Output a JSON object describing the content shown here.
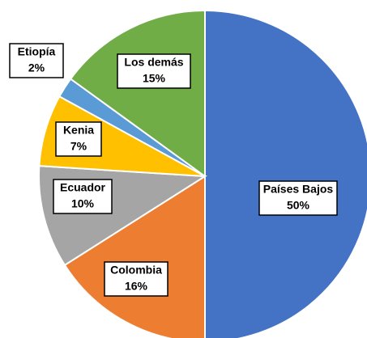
{
  "chart_data": {
    "type": "pie",
    "categories": [
      "Países Bajos",
      "Colombia",
      "Ecuador",
      "Kenia",
      "Etiopía",
      "Los demás"
    ],
    "values": [
      50,
      16,
      10,
      7,
      2,
      15
    ],
    "value_labels": [
      "50%",
      "16%",
      "10%",
      "7%",
      "2%",
      "15%"
    ],
    "colors": [
      "#4472c4",
      "#ed7d31",
      "#a5a5a5",
      "#ffc000",
      "#5b9bd5",
      "#70ad47"
    ],
    "start_angle": 90,
    "direction": "clockwise"
  }
}
